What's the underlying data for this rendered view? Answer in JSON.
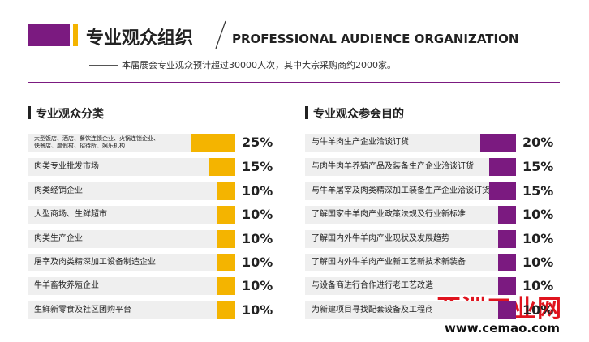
{
  "header": {
    "title": "专业观众组织",
    "title_en": "PROFESSIONAL AUDIENCE ORGANIZATION",
    "subtitle": "本届展会专业观众预计超过30000人次，其中大宗采购商约2000家。"
  },
  "left": {
    "title": "专业观众分类",
    "color": "#f4b400",
    "items": [
      {
        "label": "大型饭店、酒店、餐饮连锁企业、火锅连锁企业、\n快餐店、度假村、招待所、娱乐机构",
        "value": 25,
        "value_label": "25%"
      },
      {
        "label": "肉类专业批发市场",
        "value": 15,
        "value_label": "15%"
      },
      {
        "label": "肉类经销企业",
        "value": 10,
        "value_label": "10%"
      },
      {
        "label": "大型商场、生鲜超市",
        "value": 10,
        "value_label": "10%"
      },
      {
        "label": "肉类生产企业",
        "value": 10,
        "value_label": "10%"
      },
      {
        "label": "屠宰及肉类精深加工设备制造企业",
        "value": 10,
        "value_label": "10%"
      },
      {
        "label": "牛羊畜牧养殖企业",
        "value": 10,
        "value_label": "10%"
      },
      {
        "label": "生鲜新零食及社区团购平台",
        "value": 10,
        "value_label": "10%"
      }
    ]
  },
  "right": {
    "title": "专业观众参会目的",
    "color": "#7b1a80",
    "items": [
      {
        "label": "与牛羊肉生产企业洽谈订货",
        "value": 20,
        "value_label": "20%"
      },
      {
        "label": "与肉牛肉羊养殖产品及装备生产企业洽谈订货",
        "value": 15,
        "value_label": "15%"
      },
      {
        "label": "与牛羊屠宰及肉类精深加工装备生产企业洽谈订货",
        "value": 15,
        "value_label": "15%"
      },
      {
        "label": "了解国家牛羊肉产业政策法规及行业新标准",
        "value": 10,
        "value_label": "10%"
      },
      {
        "label": "了解国内外牛羊肉产业现状及发展趋势",
        "value": 10,
        "value_label": "10%"
      },
      {
        "label": "了解国内外牛羊肉产业新工艺新技术新装备",
        "value": 10,
        "value_label": "10%"
      },
      {
        "label": "与设备商进行合作进行老工艺改造",
        "value": 10,
        "value_label": "10%"
      },
      {
        "label": "为新建项目寻找配套设备及工程商",
        "value": 10,
        "value_label": "10%"
      }
    ]
  },
  "watermark": {
    "name": "亚洲工业网",
    "url": "www.cemao.com"
  }
}
